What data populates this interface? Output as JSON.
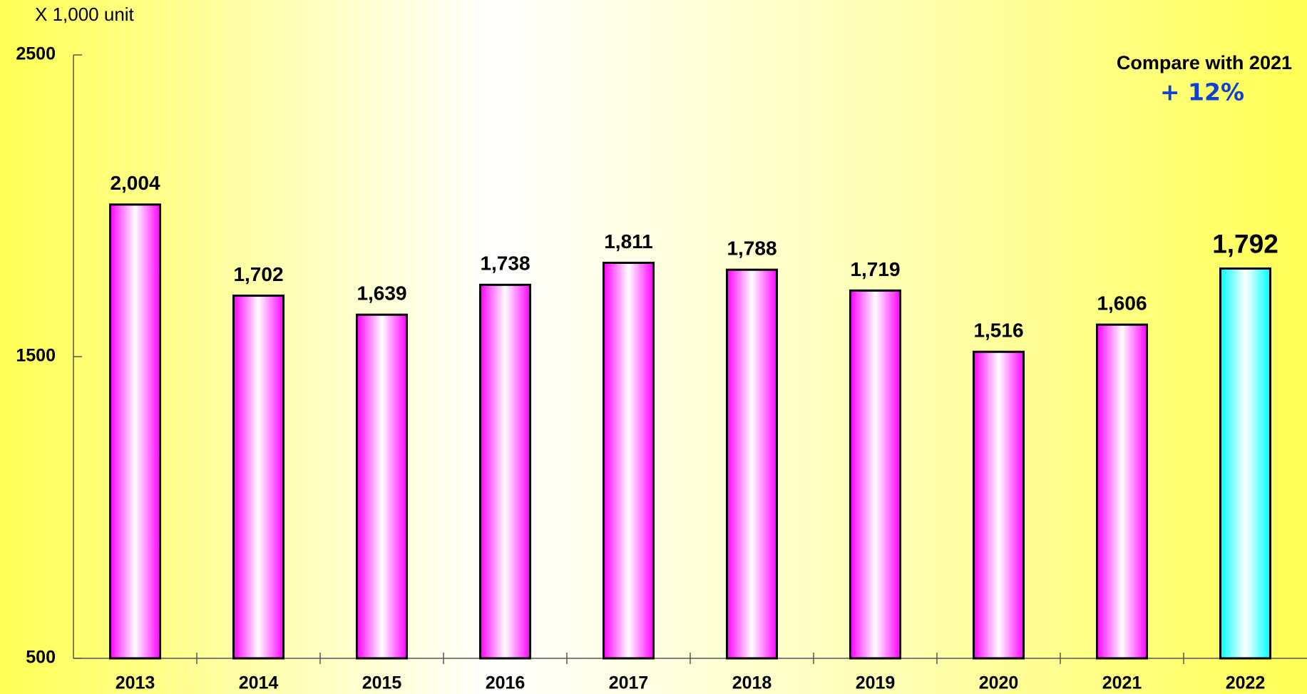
{
  "chart_data": {
    "type": "bar",
    "y_axis_label": "X 1,000 unit",
    "annotation": "Compare with  2021",
    "annotation_value": "+ 12%",
    "categories": [
      "2013",
      "2014",
      "2015",
      "2016",
      "2017",
      "2018",
      "2019",
      "2020",
      "2021",
      "2022"
    ],
    "values": [
      2004,
      1702,
      1639,
      1738,
      1811,
      1788,
      1719,
      1516,
      1606,
      1792
    ],
    "value_labels": [
      "2,004",
      "1,702",
      "1,639",
      "1,738",
      "1,811",
      "1,788",
      "1,719",
      "1,516",
      "1,606",
      "1,792"
    ],
    "colors": [
      "#ff00ff",
      "#ff00ff",
      "#ff00ff",
      "#ff00ff",
      "#ff00ff",
      "#ff00ff",
      "#ff00ff",
      "#ff00ff",
      "#ff00ff",
      "#00ffff"
    ],
    "ylim": [
      500,
      2500
    ],
    "yticks": [
      500,
      1500,
      2500
    ]
  }
}
